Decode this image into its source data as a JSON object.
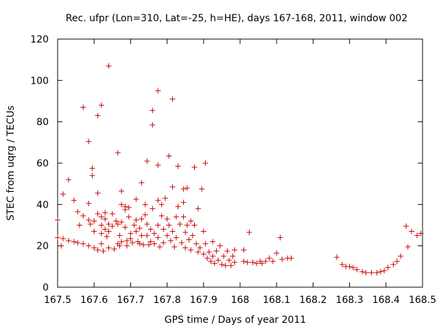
{
  "chart_data": {
    "type": "scatter",
    "title": "Rec. ufpr (Lon=310, Lat=-25, h=HE), days 167-168, 2011, window 002",
    "xlabel": "GPS time / Days of year 2011",
    "ylabel": "STEC from uqrg / TECUs",
    "xlim": [
      167.5,
      168.5
    ],
    "ylim": [
      0,
      120
    ],
    "xticks": [
      167.5,
      167.6,
      167.7,
      167.8,
      167.9,
      168.0,
      168.1,
      168.2,
      168.3,
      168.4,
      168.5
    ],
    "xtick_labels": [
      "167.5",
      "167.6",
      "167.7",
      "167.8",
      "167.9",
      "168",
      "168.1",
      "168.2",
      "168.3",
      "168.4",
      "168.5"
    ],
    "yticks": [
      0,
      20,
      40,
      60,
      80,
      100,
      120
    ],
    "ytick_labels": [
      "0",
      "20",
      "40",
      "60",
      "80",
      "100",
      "120"
    ],
    "marker": "+",
    "marker_color": "#cc0000",
    "grid": false,
    "series": [
      {
        "name": "STEC",
        "points": [
          [
            167.5,
            32.5
          ],
          [
            167.5,
            24
          ],
          [
            167.51,
            20
          ],
          [
            167.515,
            45
          ],
          [
            167.515,
            23.5
          ],
          [
            167.53,
            52
          ],
          [
            167.53,
            22.5
          ],
          [
            167.545,
            42
          ],
          [
            167.545,
            22
          ],
          [
            167.555,
            36.5
          ],
          [
            167.555,
            21.5
          ],
          [
            167.56,
            30
          ],
          [
            167.57,
            87
          ],
          [
            167.57,
            34.5
          ],
          [
            167.57,
            21
          ],
          [
            167.585,
            70.5
          ],
          [
            167.585,
            40.5
          ],
          [
            167.585,
            32.5
          ],
          [
            167.585,
            20
          ],
          [
            167.59,
            30.5
          ],
          [
            167.595,
            57.5
          ],
          [
            167.595,
            54
          ],
          [
            167.6,
            32
          ],
          [
            167.6,
            27
          ],
          [
            167.6,
            19
          ],
          [
            167.61,
            83
          ],
          [
            167.61,
            45.5
          ],
          [
            167.61,
            35.5
          ],
          [
            167.61,
            18
          ],
          [
            167.62,
            88
          ],
          [
            167.62,
            34
          ],
          [
            167.62,
            30
          ],
          [
            167.62,
            26
          ],
          [
            167.62,
            21
          ],
          [
            167.625,
            17.5
          ],
          [
            167.63,
            36
          ],
          [
            167.63,
            33
          ],
          [
            167.63,
            28
          ],
          [
            167.635,
            24.5
          ],
          [
            167.64,
            107
          ],
          [
            167.64,
            30.5
          ],
          [
            167.64,
            27
          ],
          [
            167.64,
            19
          ],
          [
            167.65,
            35.5
          ],
          [
            167.65,
            29.5
          ],
          [
            167.655,
            18.5
          ],
          [
            167.66,
            32
          ],
          [
            167.665,
            65
          ],
          [
            167.665,
            30.5
          ],
          [
            167.665,
            21
          ],
          [
            167.67,
            25
          ],
          [
            167.67,
            20
          ],
          [
            167.675,
            46.5
          ],
          [
            167.675,
            40
          ],
          [
            167.675,
            31.5
          ],
          [
            167.675,
            22
          ],
          [
            167.685,
            39
          ],
          [
            167.685,
            37.5
          ],
          [
            167.685,
            29
          ],
          [
            167.69,
            22.5
          ],
          [
            167.69,
            20
          ],
          [
            167.695,
            38.5
          ],
          [
            167.695,
            34
          ],
          [
            167.7,
            26
          ],
          [
            167.7,
            23.5
          ],
          [
            167.705,
            21.5
          ],
          [
            167.71,
            30
          ],
          [
            167.715,
            42.5
          ],
          [
            167.715,
            32.5
          ],
          [
            167.715,
            27
          ],
          [
            167.72,
            22
          ],
          [
            167.725,
            28.5
          ],
          [
            167.725,
            21
          ],
          [
            167.73,
            50.5
          ],
          [
            167.73,
            33
          ],
          [
            167.73,
            25
          ],
          [
            167.735,
            20.5
          ],
          [
            167.74,
            40
          ],
          [
            167.74,
            35
          ],
          [
            167.745,
            61
          ],
          [
            167.745,
            30.5
          ],
          [
            167.745,
            25
          ],
          [
            167.75,
            20.5
          ],
          [
            167.755,
            28
          ],
          [
            167.755,
            22
          ],
          [
            167.76,
            85.5
          ],
          [
            167.76,
            78.5
          ],
          [
            167.76,
            38
          ],
          [
            167.765,
            26
          ],
          [
            167.765,
            21
          ],
          [
            167.775,
            95
          ],
          [
            167.775,
            59
          ],
          [
            167.775,
            42
          ],
          [
            167.775,
            30
          ],
          [
            167.775,
            24
          ],
          [
            167.78,
            19.5
          ],
          [
            167.785,
            40
          ],
          [
            167.785,
            34.5
          ],
          [
            167.79,
            28
          ],
          [
            167.79,
            21.5
          ],
          [
            167.795,
            43
          ],
          [
            167.8,
            33
          ],
          [
            167.8,
            25
          ],
          [
            167.805,
            63.5
          ],
          [
            167.805,
            30
          ],
          [
            167.81,
            22.5
          ],
          [
            167.815,
            91
          ],
          [
            167.815,
            48.5
          ],
          [
            167.815,
            27
          ],
          [
            167.82,
            19.5
          ],
          [
            167.825,
            34
          ],
          [
            167.825,
            24
          ],
          [
            167.83,
            58.5
          ],
          [
            167.83,
            39
          ],
          [
            167.835,
            30.5
          ],
          [
            167.84,
            21.5
          ],
          [
            167.845,
            47.5
          ],
          [
            167.845,
            41
          ],
          [
            167.845,
            34
          ],
          [
            167.85,
            26.5
          ],
          [
            167.85,
            19
          ],
          [
            167.855,
            48
          ],
          [
            167.855,
            30
          ],
          [
            167.86,
            23
          ],
          [
            167.865,
            32
          ],
          [
            167.865,
            18
          ],
          [
            167.87,
            25
          ],
          [
            167.875,
            58
          ],
          [
            167.875,
            30
          ],
          [
            167.88,
            21
          ],
          [
            167.885,
            38
          ],
          [
            167.885,
            17
          ],
          [
            167.89,
            19
          ],
          [
            167.895,
            47.5
          ],
          [
            167.9,
            27
          ],
          [
            167.9,
            16
          ],
          [
            167.905,
            60
          ],
          [
            167.905,
            21
          ],
          [
            167.91,
            14
          ],
          [
            167.915,
            17
          ],
          [
            167.92,
            12.5
          ],
          [
            167.925,
            22
          ],
          [
            167.925,
            15
          ],
          [
            167.93,
            11.5
          ],
          [
            167.935,
            17.5
          ],
          [
            167.94,
            13
          ],
          [
            167.945,
            20
          ],
          [
            167.95,
            11
          ],
          [
            167.955,
            15
          ],
          [
            167.96,
            10.5
          ],
          [
            167.965,
            17.5
          ],
          [
            167.97,
            13
          ],
          [
            167.975,
            10.5
          ],
          [
            167.98,
            15
          ],
          [
            167.985,
            18
          ],
          [
            167.985,
            12
          ],
          [
            168.01,
            18
          ],
          [
            168.01,
            12.5
          ],
          [
            168.02,
            12
          ],
          [
            168.025,
            26.5
          ],
          [
            168.035,
            12
          ],
          [
            168.045,
            11.5
          ],
          [
            168.055,
            12.5
          ],
          [
            168.06,
            11.5
          ],
          [
            168.07,
            12.5
          ],
          [
            168.08,
            14
          ],
          [
            168.09,
            12.5
          ],
          [
            168.1,
            16.5
          ],
          [
            168.11,
            24
          ],
          [
            168.115,
            13.5
          ],
          [
            168.13,
            14
          ],
          [
            168.14,
            14
          ],
          [
            168.265,
            14.5
          ],
          [
            168.28,
            11
          ],
          [
            168.29,
            10
          ],
          [
            168.3,
            10
          ],
          [
            168.31,
            9.5
          ],
          [
            168.32,
            8.5
          ],
          [
            168.335,
            7.5
          ],
          [
            168.345,
            7
          ],
          [
            168.36,
            7
          ],
          [
            168.375,
            7
          ],
          [
            168.385,
            7.5
          ],
          [
            168.395,
            8
          ],
          [
            168.405,
            9.5
          ],
          [
            168.42,
            11
          ],
          [
            168.43,
            12.5
          ],
          [
            168.44,
            15
          ],
          [
            168.455,
            29.5
          ],
          [
            168.46,
            19.5
          ],
          [
            168.47,
            27
          ],
          [
            168.485,
            25
          ],
          [
            168.495,
            26
          ]
        ]
      }
    ]
  }
}
